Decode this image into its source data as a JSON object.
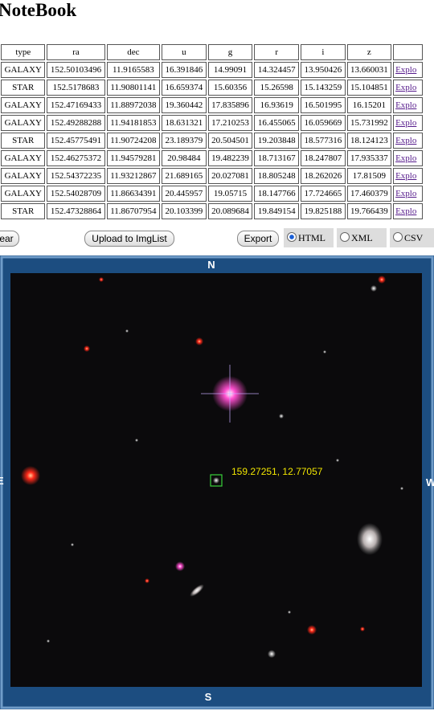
{
  "header": {
    "title": "NoteBook"
  },
  "table": {
    "columns": [
      "type",
      "ra",
      "dec",
      "u",
      "g",
      "r",
      "i",
      "z"
    ],
    "rows": [
      [
        "GALAXY",
        "152.50103496",
        "11.9165583",
        "16.391846",
        "14.99091",
        "14.324457",
        "13.950426",
        "13.660031",
        "Explo"
      ],
      [
        "STAR",
        "152.5178683",
        "11.90801141",
        "16.659374",
        "15.60356",
        "15.26598",
        "15.143259",
        "15.104851",
        "Explo"
      ],
      [
        "GALAXY",
        "152.47169433",
        "11.88972038",
        "19.360442",
        "17.835896",
        "16.93619",
        "16.501995",
        "16.15201",
        "Explo"
      ],
      [
        "GALAXY",
        "152.49288288",
        "11.94181853",
        "18.631321",
        "17.210253",
        "16.455065",
        "16.059669",
        "15.731992",
        "Explo"
      ],
      [
        "STAR",
        "152.45775491",
        "11.90724208",
        "23.189379",
        "20.504501",
        "19.203848",
        "18.577316",
        "18.124123",
        "Explo"
      ],
      [
        "GALAXY",
        "152.46275372",
        "11.94579281",
        "20.98484",
        "19.482239",
        "18.713167",
        "18.247807",
        "17.935337",
        "Explo"
      ],
      [
        "GALAXY",
        "152.54372235",
        "11.93212867",
        "21.689165",
        "20.027081",
        "18.805248",
        "18.262026",
        "17.81509",
        "Explo"
      ],
      [
        "GALAXY",
        "152.54028709",
        "11.86634391",
        "20.445957",
        "19.05715",
        "18.147766",
        "17.724665",
        "17.460379",
        "Explo"
      ],
      [
        "STAR",
        "152.47328864",
        "11.86707954",
        "20.103399",
        "20.089684",
        "19.849154",
        "19.825188",
        "19.766439",
        "Explo"
      ]
    ]
  },
  "toolbar": {
    "clear": "ear",
    "upload": "Upload to ImgList",
    "export": "Export",
    "formats": [
      "HTML",
      "XML",
      "CSV"
    ]
  },
  "viewer": {
    "north": "N",
    "south": "S",
    "east": "E",
    "west": "W",
    "coordinates": "159.27251, 12.77057"
  }
}
